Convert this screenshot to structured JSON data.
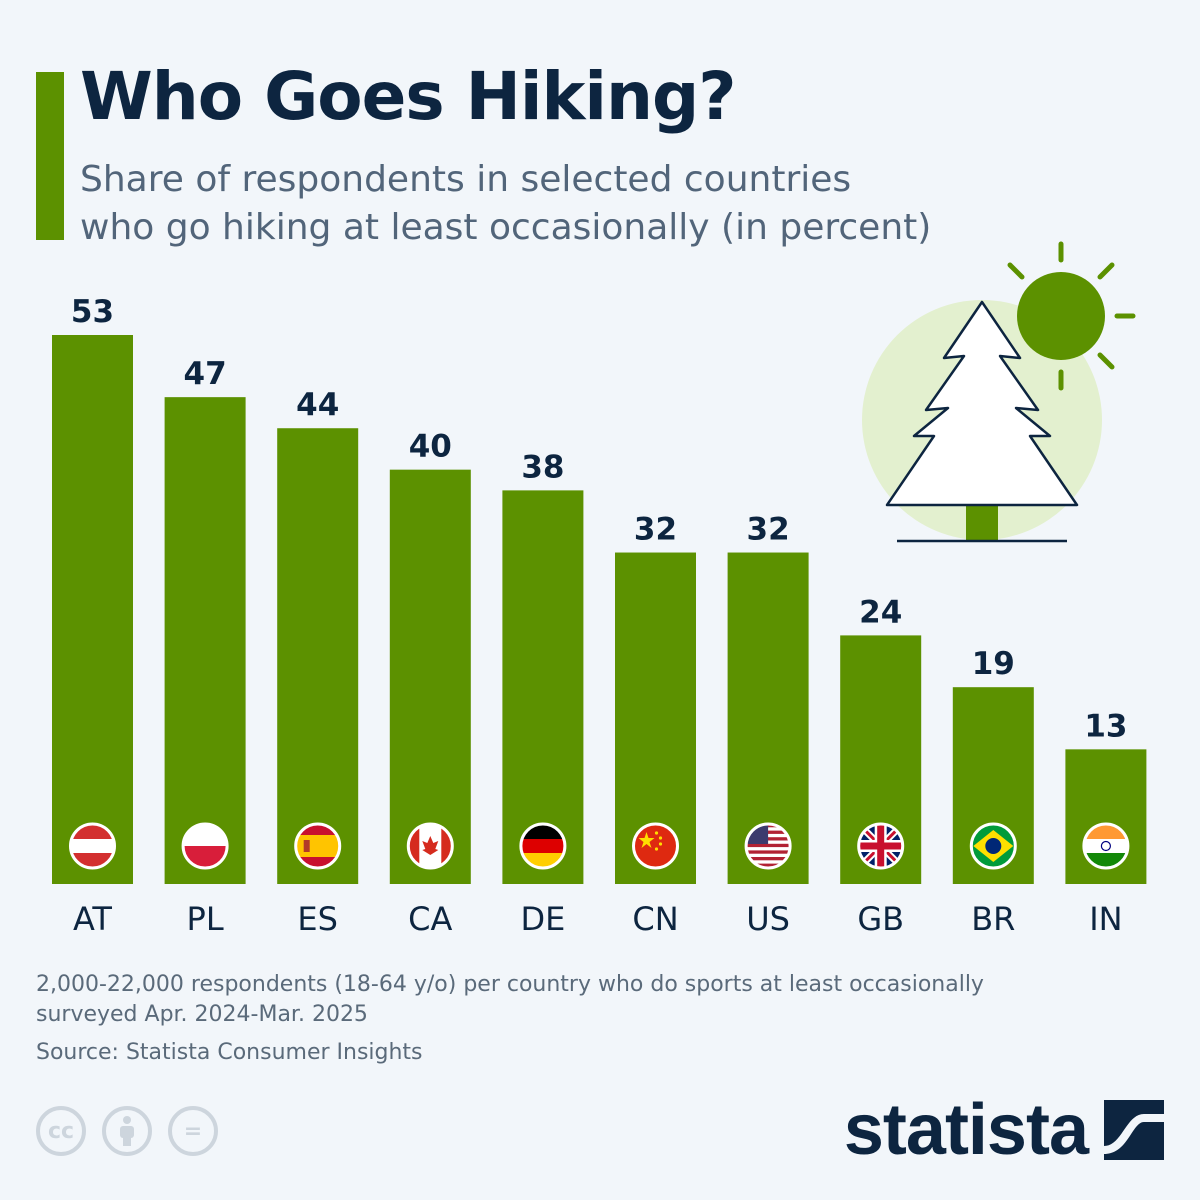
{
  "header": {
    "title": "Who Goes Hiking?",
    "subtitle_line1": "Share of respondents in selected countries",
    "subtitle_line2": "who go hiking at least occasionally (in percent)"
  },
  "colors": {
    "accent": "#5c9100",
    "bar": "#5c9100",
    "text_dark": "#0d2540",
    "text_muted": "#52657a",
    "background": "#f2f6fa",
    "illustration_circle": "#e3f0cf",
    "sun": "#5c9100"
  },
  "chart_data": {
    "type": "bar",
    "title": "Who Goes Hiking?",
    "subtitle": "Share of respondents in selected countries who go hiking at least occasionally (in percent)",
    "categories": [
      "AT",
      "PL",
      "ES",
      "CA",
      "DE",
      "CN",
      "US",
      "GB",
      "BR",
      "IN"
    ],
    "values": [
      53,
      47,
      44,
      40,
      38,
      32,
      32,
      24,
      19,
      13
    ],
    "flags": [
      "austria-flag",
      "poland-flag",
      "spain-flag",
      "canada-flag",
      "germany-flag",
      "china-flag",
      "usa-flag",
      "uk-flag",
      "brazil-flag",
      "india-flag"
    ],
    "xlabel": "",
    "ylabel": "",
    "ylim": [
      0,
      53
    ],
    "grid": false,
    "legend": "none",
    "data_labels": true
  },
  "footer": {
    "note_line1": "2,000-22,000 respondents (18-64 y/o) per country who do sports at least occasionally",
    "note_line2": "surveyed Apr. 2024-Mar. 2025",
    "source": "Source: Statista Consumer Insights",
    "license_icons": [
      "creative-commons-icon",
      "attribution-icon",
      "no-derivatives-icon"
    ],
    "cc_label": "cc",
    "nd_label": "="
  },
  "brand": {
    "name": "statista"
  }
}
